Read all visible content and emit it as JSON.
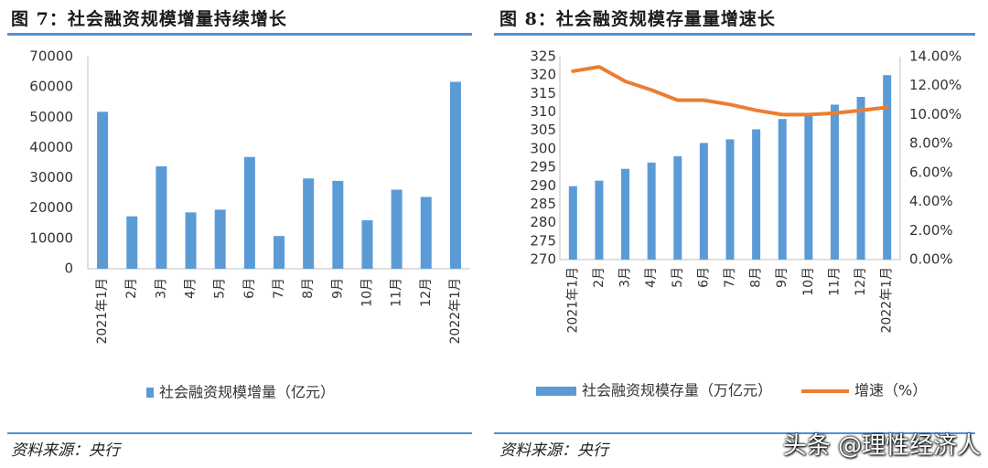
{
  "left": {
    "title": "图 7：社会融资规模增量持续增长",
    "source": "资料来源：央行"
  },
  "right": {
    "title": "图 8：社会融资规模存量量增速长",
    "source": "资料来源：央行"
  },
  "watermark": "头条 @理性经济人",
  "colors": {
    "bar": "#5b9bd5",
    "line": "#ed7d31",
    "rule": "#4e92d6"
  },
  "chart_data": [
    {
      "type": "bar",
      "categories": [
        "2021年1月",
        "2月",
        "3月",
        "4月",
        "5月",
        "6月",
        "7月",
        "8月",
        "9月",
        "10月",
        "11月",
        "12月",
        "2022年1月"
      ],
      "series": [
        {
          "name": "社会融资规模增量（亿元）",
          "values": [
            51800,
            17300,
            33800,
            18600,
            19500,
            36900,
            10800,
            29800,
            29000,
            16000,
            26100,
            23700,
            61700
          ]
        }
      ],
      "yticks": [
        "0",
        "10000",
        "20000",
        "30000",
        "40000",
        "50000",
        "60000",
        "70000"
      ],
      "ylim": [
        0,
        70000
      ],
      "grid": false,
      "legend": "bottom"
    },
    {
      "type": "bar+line",
      "categories": [
        "2021年1月",
        "2月",
        "3月",
        "4月",
        "5月",
        "6月",
        "7月",
        "8月",
        "9月",
        "10月",
        "11月",
        "12月",
        "2022年1月"
      ],
      "series": [
        {
          "name": "社会融资规模存量（万亿元）",
          "type": "bar",
          "axis": "left",
          "values": [
            289.9,
            291.4,
            294.6,
            296.3,
            298.0,
            301.6,
            302.6,
            305.3,
            308.1,
            309.4,
            312.0,
            314.1,
            320.0
          ]
        },
        {
          "name": "增速（%）",
          "type": "line",
          "axis": "right",
          "values": [
            13.0,
            13.3,
            12.3,
            11.7,
            11.0,
            11.0,
            10.7,
            10.3,
            10.0,
            10.0,
            10.1,
            10.3,
            10.5
          ]
        }
      ],
      "yticks_left": [
        "270",
        "275",
        "280",
        "285",
        "290",
        "295",
        "300",
        "305",
        "310",
        "315",
        "320",
        "325"
      ],
      "ylim_left": [
        270,
        325
      ],
      "yticks_right": [
        "0.00%",
        "2.00%",
        "4.00%",
        "6.00%",
        "8.00%",
        "10.00%",
        "12.00%",
        "14.00%"
      ],
      "ylim_right": [
        0,
        14
      ],
      "grid": false,
      "legend": "bottom"
    }
  ]
}
